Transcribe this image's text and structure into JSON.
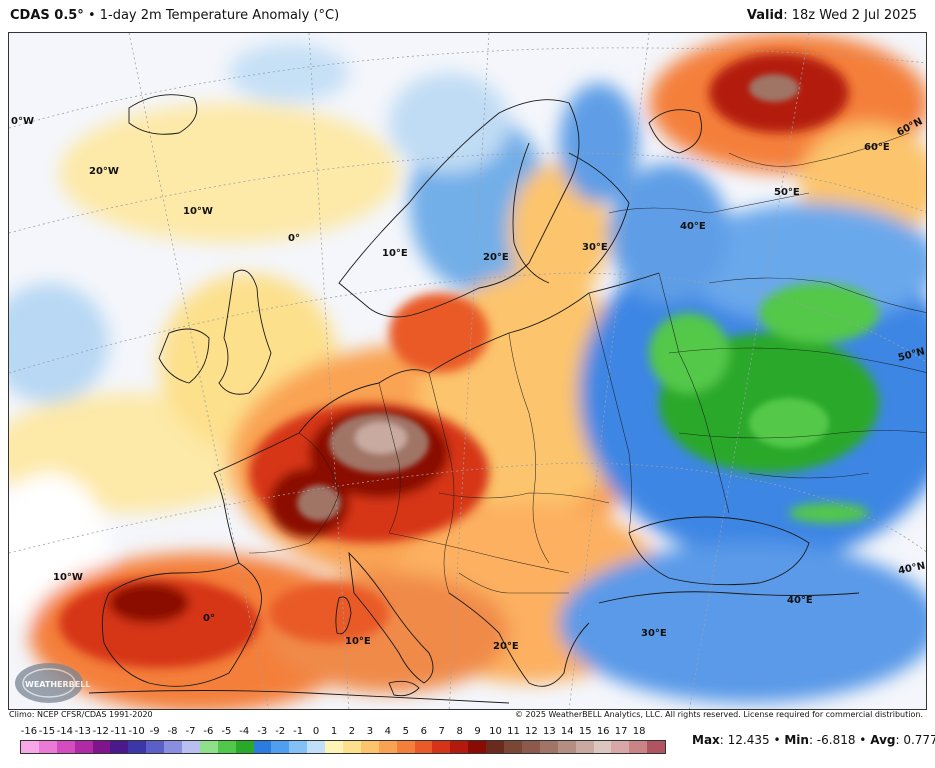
{
  "header": {
    "title_bold": "CDAS 0.5°",
    "title_rest": " • 1-day 2m Temperature Anomaly (°C)",
    "valid_label": "Valid",
    "valid_value": ": 18z Wed 2 Jul 2025"
  },
  "map": {
    "graticule_labels": {
      "lon_0w": "0°W",
      "lon_20w": "20°W",
      "lon_10w_north": "10°W",
      "lon_0_north": "0°",
      "lon_10e_north": "10°E",
      "lon_20e_north": "20°E",
      "lon_30e_north": "30°E",
      "lon_40e_north": "40°E",
      "lon_50e": "50°E",
      "lon_60e": "60°E",
      "lat_60n": "60°N",
      "lat_50n": "50°N",
      "lat_40n": "40°N",
      "lon_10w_south": "10°W",
      "lon_0_south": "0°",
      "lon_10e_south": "10°E",
      "lon_20e_south": "20°E",
      "lon_30e_south": "30°E",
      "lon_40e_south": "40°E"
    },
    "logo_text": "WEATHERBELL"
  },
  "footer": {
    "climo": "Climo: NCEP CFSR/CDAS 1991-2020",
    "copyright": "© 2025 WeatherBELL Analytics, LLC. All rights reserved. License required for commercial distribution."
  },
  "legend": {
    "ticks": [
      "-16",
      "-15",
      "-14",
      "-13",
      "-12",
      "-11",
      "-10",
      "-9",
      "-8",
      "-7",
      "-6",
      "-5",
      "-4",
      "-3",
      "-2",
      "-1",
      "0",
      "1",
      "2",
      "3",
      "4",
      "5",
      "6",
      "7",
      "8",
      "9",
      "10",
      "11",
      "12",
      "13",
      "14",
      "15",
      "16",
      "17",
      "18"
    ],
    "colors": [
      "#f7a8e8",
      "#ea7ad6",
      "#d44cc0",
      "#b02aa6",
      "#80148c",
      "#4a1a8c",
      "#3c36a8",
      "#5a60c8",
      "#8a8ee0",
      "#b9c0f0",
      "#8fe08a",
      "#52c84a",
      "#2aa82a",
      "#2c7ce0",
      "#4f9ef0",
      "#82c0f6",
      "#c0e0fa",
      "#fff4b8",
      "#fde08c",
      "#fcc46c",
      "#f9a352",
      "#f47f3a",
      "#e95a28",
      "#d63418",
      "#b31a0c",
      "#8a0a04",
      "#6a2a1e",
      "#7a4636",
      "#8c5a4c",
      "#a07466",
      "#b48e82",
      "#c8aaa0",
      "#dcc6c0",
      "#d8a8a8",
      "#c98486",
      "#b05462"
    ]
  },
  "stats": {
    "max_label": "Max",
    "max_value": ": 12.435 • ",
    "min_label": "Min",
    "min_value": ": -6.818 • ",
    "avg_label": "Avg",
    "avg_value": ": 0.777"
  }
}
